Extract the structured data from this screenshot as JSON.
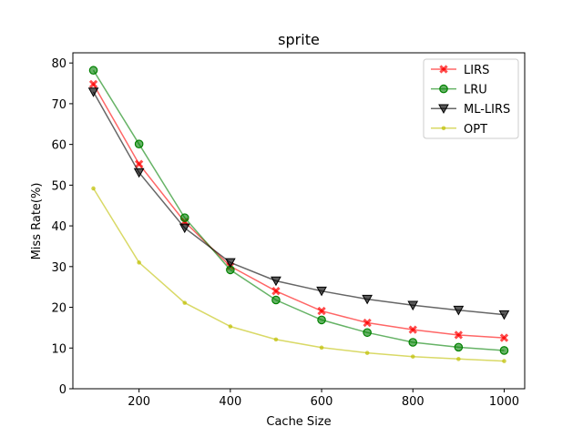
{
  "chart_data": {
    "type": "line",
    "title": "sprite",
    "xlabel": "Cache Size",
    "ylabel": "Miss Rate(%)",
    "x": [
      100,
      200,
      300,
      400,
      500,
      600,
      700,
      800,
      900,
      1000
    ],
    "xlim": [
      55,
      1045
    ],
    "ylim": [
      0,
      82.5
    ],
    "xticks": [
      200,
      400,
      600,
      800,
      1000
    ],
    "yticks": [
      0,
      10,
      20,
      30,
      40,
      50,
      60,
      70,
      80
    ],
    "grid": false,
    "legend_position": "top-right",
    "series": [
      {
        "name": "LIRS",
        "color": "#ff0000",
        "marker": "x",
        "values": [
          74.8,
          55.2,
          41.0,
          30.1,
          24.0,
          19.1,
          16.2,
          14.5,
          13.2,
          12.5
        ]
      },
      {
        "name": "LRU",
        "color": "#008000",
        "marker": "circle",
        "values": [
          78.2,
          60.1,
          42.0,
          29.2,
          21.8,
          16.9,
          13.8,
          11.4,
          10.2,
          9.4
        ]
      },
      {
        "name": "ML-LIRS",
        "color": "#000000",
        "marker": "triangle-down",
        "values": [
          72.9,
          53.1,
          39.5,
          31.0,
          26.5,
          24.0,
          22.0,
          20.5,
          19.3,
          18.2
        ]
      },
      {
        "name": "OPT",
        "color": "#bfbf00",
        "marker": "dot",
        "values": [
          49.2,
          31.0,
          21.1,
          15.3,
          12.1,
          10.1,
          8.8,
          7.9,
          7.3,
          6.8
        ]
      }
    ]
  }
}
